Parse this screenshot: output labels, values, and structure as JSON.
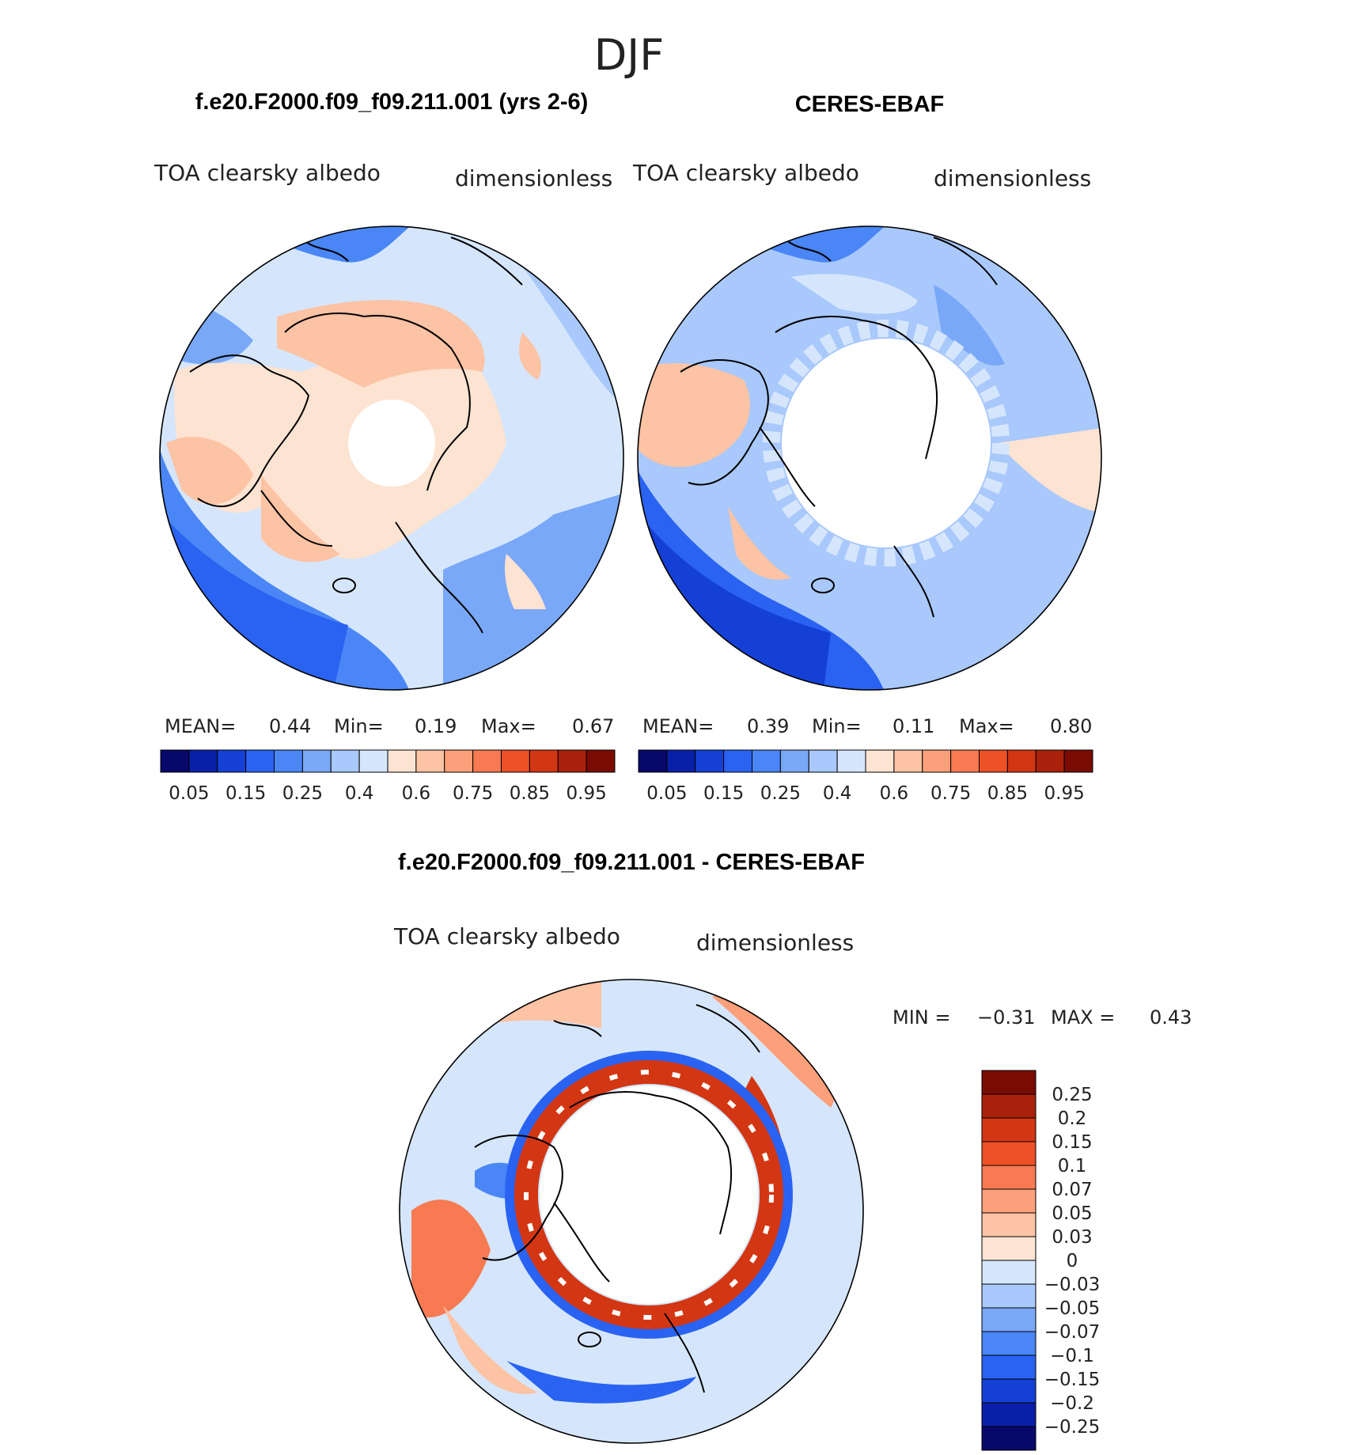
{
  "season": "DJF",
  "ramp_colors": [
    "#08086b",
    "#0a1fa8",
    "#1540d6",
    "#2a63f2",
    "#4a86f5",
    "#7aa8f8",
    "#a9c8fb",
    "#d5e6fc",
    "#fde3d2",
    "#fcc3a4",
    "#fba07a",
    "#f87a52",
    "#ee5126",
    "#d33613",
    "#aa210b",
    "#7a0b03"
  ],
  "ramp_labels": [
    "0.05",
    "0.15",
    "0.25",
    "0.4",
    "0.6",
    "0.75",
    "0.85",
    "0.95"
  ],
  "diff_colors": [
    "#08086b",
    "#0a1fa8",
    "#1540d6",
    "#2a63f2",
    "#4a86f5",
    "#7aa8f8",
    "#a9c8fb",
    "#d5e6fc",
    "#fde3d2",
    "#fcc3a4",
    "#fba07a",
    "#f87a52",
    "#ee5126",
    "#d33613",
    "#aa210b",
    "#7a0b03"
  ],
  "diff_labels": [
    "0.25",
    "0.2",
    "0.15",
    "0.1",
    "0.07",
    "0.05",
    "0.03",
    "0",
    "−0.03",
    "−0.05",
    "−0.07",
    "−0.1",
    "−0.15",
    "−0.2",
    "−0.25"
  ],
  "panels": [
    {
      "title": "f.e20.F2000.f09_f09.211.001 (yrs 2-6)",
      "left_label": "TOA clearsky albedo",
      "right_label": "dimensionless",
      "stats": {
        "mean_label": "MEAN=",
        "mean": "0.44",
        "min_label": "Min=",
        "min": "0.19",
        "max_label": "Max=",
        "max": "0.67"
      }
    },
    {
      "title": "CERES-EBAF",
      "left_label": "TOA clearsky albedo",
      "right_label": "dimensionless",
      "stats": {
        "mean_label": "MEAN=",
        "mean": "0.39",
        "min_label": "Min=",
        "min": "0.11",
        "max_label": "Max=",
        "max": "0.80"
      }
    }
  ],
  "difference": {
    "title": "f.e20.F2000.f09_f09.211.001 - CERES-EBAF",
    "left_label": "TOA clearsky albedo",
    "right_label": "dimensionless",
    "min_label": "MIN =",
    "min": "−0.31",
    "max_label": "MAX =",
    "max": "0.43"
  }
}
